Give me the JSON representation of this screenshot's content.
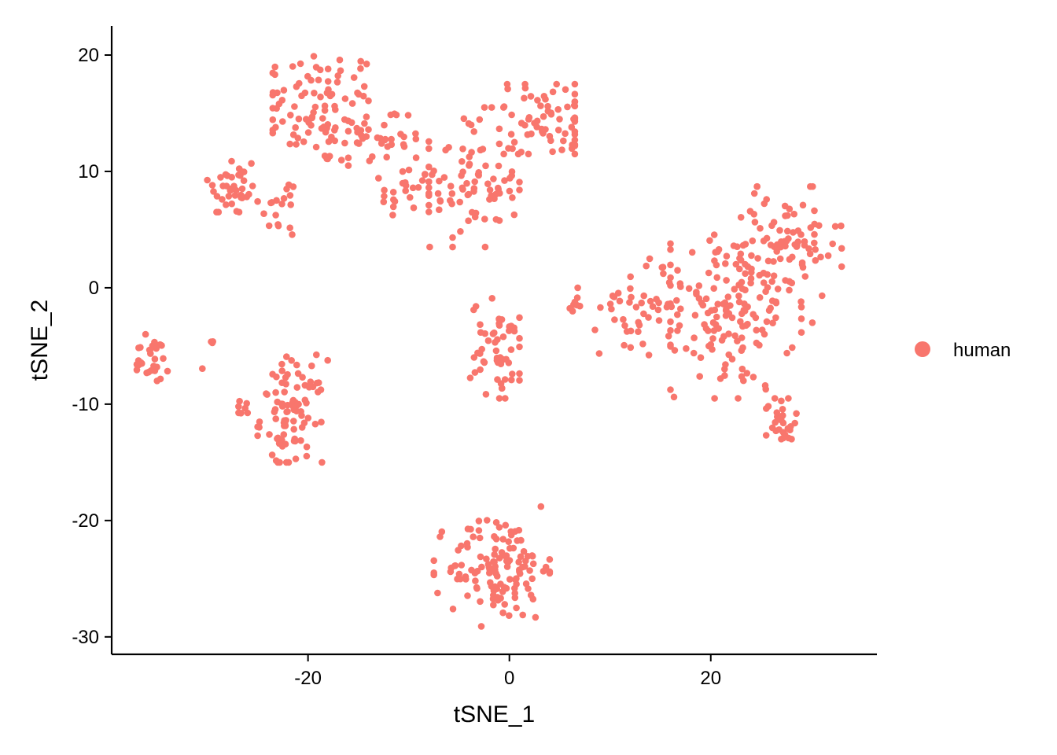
{
  "chart_data": {
    "type": "scatter",
    "xlabel": "tSNE_1",
    "ylabel": "tSNE_2",
    "xlim": [
      -39.5,
      36.5
    ],
    "ylim": [
      -31.5,
      22.5
    ],
    "x_ticks": [
      -20,
      0,
      20
    ],
    "y_ticks": [
      20,
      10,
      0,
      -10,
      -20,
      -30
    ],
    "x_tick_labels": [
      "-20",
      "0",
      "20"
    ],
    "y_tick_labels": [
      "20",
      "10",
      "0",
      "-10",
      "-20",
      "-30"
    ],
    "grid": false,
    "legend": {
      "position": "right",
      "entries": [
        "human"
      ]
    },
    "series": [
      {
        "name": "human",
        "color": "#F8766D",
        "clusters": [
          {
            "cx": -19,
            "cy": 15.5,
            "sx": 3.2,
            "sy": 2.6,
            "n": 95,
            "xr": [
              -23.5,
              -14
            ],
            "yr": [
              9,
              20
            ]
          },
          {
            "cx": -27.5,
            "cy": 8.5,
            "sx": 1.3,
            "sy": 1.6,
            "n": 40,
            "xr": [
              -30,
              -25.5
            ],
            "yr": [
              6.5,
              12
            ]
          },
          {
            "cx": -22.5,
            "cy": 7,
            "sx": 1.2,
            "sy": 1.4,
            "n": 18,
            "xr": [
              -25,
              -20.5
            ],
            "yr": [
              4.5,
              9.5
            ]
          },
          {
            "cx": -12.5,
            "cy": 13,
            "sx": 2.3,
            "sy": 1.3,
            "n": 35,
            "xr": [
              -16,
              -8
            ],
            "yr": [
              10.5,
              15.5
            ]
          },
          {
            "cx": -10.5,
            "cy": 8,
            "sx": 1.3,
            "sy": 1.4,
            "n": 22,
            "xr": [
              -13,
              -8
            ],
            "yr": [
              6,
              11
            ]
          },
          {
            "cx": -4,
            "cy": 9,
            "sx": 2.5,
            "sy": 3,
            "n": 90,
            "xr": [
              -8,
              1
            ],
            "yr": [
              3.5,
              15.5
            ]
          },
          {
            "cx": 4,
            "cy": 14.5,
            "sx": 2.8,
            "sy": 1.8,
            "n": 70,
            "xr": [
              -1,
              6.5
            ],
            "yr": [
              11.5,
              17.5
            ]
          },
          {
            "cx": -36,
            "cy": -6.3,
            "sx": 1.1,
            "sy": 1,
            "n": 30,
            "xr": [
              -37,
              -32
            ],
            "yr": [
              -8,
              -4
            ]
          },
          {
            "cx": -29.5,
            "cy": -4.7,
            "sx": 0.1,
            "sy": 0.1,
            "n": 3,
            "xr": [
              -29.7,
              -29.3
            ],
            "yr": [
              -4.9,
              -4.5
            ]
          },
          {
            "cx": -30.5,
            "cy": -7,
            "sx": 0.1,
            "sy": 0.1,
            "n": 1,
            "xr": [
              -30.6,
              -30.4
            ],
            "yr": [
              -7.1,
              -6.9
            ]
          },
          {
            "cx": -26.5,
            "cy": -10.3,
            "sx": 0.4,
            "sy": 0.4,
            "n": 7,
            "xr": [
              -27,
              -26
            ],
            "yr": [
              -11,
              -9.7
            ]
          },
          {
            "cx": -21.5,
            "cy": -11,
            "sx": 1.6,
            "sy": 2.4,
            "n": 90,
            "xr": [
              -25,
              -17.5
            ],
            "yr": [
              -15,
              -4.2
            ]
          },
          {
            "cx": -1,
            "cy": -5.5,
            "sx": 1.4,
            "sy": 2.2,
            "n": 55,
            "xr": [
              -4.5,
              1
            ],
            "yr": [
              -9.5,
              -0.8
            ]
          },
          {
            "cx": 6.5,
            "cy": -1.2,
            "sx": 0.4,
            "sy": 0.6,
            "n": 8,
            "xr": [
              5.5,
              7
            ],
            "yr": [
              -2.2,
              0
            ]
          },
          {
            "cx": 13.5,
            "cy": -1.5,
            "sx": 2.2,
            "sy": 2.2,
            "n": 55,
            "xr": [
              8.5,
              17
            ],
            "yr": [
              -7.5,
              2.5
            ]
          },
          {
            "cx": 22,
            "cy": -2,
            "sx": 3.2,
            "sy": 3.5,
            "n": 150,
            "xr": [
              16,
              29
            ],
            "yr": [
              -9.5,
              6
            ]
          },
          {
            "cx": 27.5,
            "cy": 3.5,
            "sx": 2.8,
            "sy": 2.6,
            "n": 80,
            "xr": [
              23,
              33
            ],
            "yr": [
              -3,
              8.7
            ]
          },
          {
            "cx": 27,
            "cy": -11.5,
            "sx": 0.8,
            "sy": 1.1,
            "n": 30,
            "xr": [
              25.5,
              28.5
            ],
            "yr": [
              -13,
              -9.5
            ]
          },
          {
            "cx": -1,
            "cy": -24,
            "sx": 2.5,
            "sy": 2.3,
            "n": 130,
            "xr": [
              -7.5,
              4
            ],
            "yr": [
              -29.2,
              -18.8
            ]
          }
        ]
      }
    ]
  }
}
